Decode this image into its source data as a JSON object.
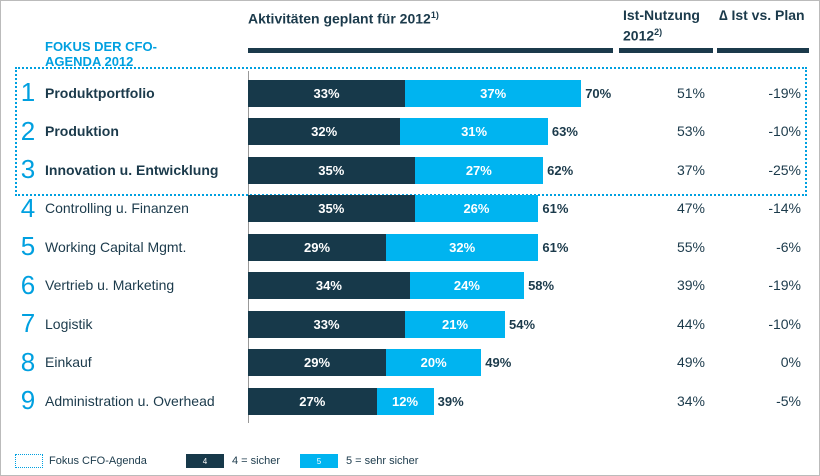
{
  "chart_data": {
    "type": "bar",
    "orientation": "horizontal",
    "stacked": true,
    "title": "Aktivitäten geplant für 2012",
    "title_note": "1)",
    "focus_heading": "FOKUS DER CFO-AGENDA 2012",
    "ranks": [
      1,
      2,
      3,
      4,
      5,
      6,
      7,
      8,
      9
    ],
    "categories": [
      "Produktportfolio",
      "Produktion",
      "Innovation u. Entwicklung",
      "Controlling u. Finanzen",
      "Working Capital Mgmt.",
      "Vertrieb u. Marketing",
      "Logistik",
      "Einkauf",
      "Administration u. Overhead"
    ],
    "focus": [
      true,
      true,
      true,
      false,
      false,
      false,
      false,
      false,
      false
    ],
    "xlim": [
      0,
      100
    ],
    "series": [
      {
        "name": "4 = sicher",
        "key": "4",
        "color": "#17394a",
        "values": [
          33,
          32,
          35,
          35,
          29,
          34,
          33,
          29,
          27
        ],
        "value_labels": [
          "33%",
          "32%",
          "35%",
          "35%",
          "29%",
          "34%",
          "33%",
          "29%",
          "27%"
        ]
      },
      {
        "name": "5 = sehr sicher",
        "key": "5",
        "color": "#00b4f0",
        "values": [
          37,
          31,
          27,
          26,
          32,
          24,
          21,
          20,
          12
        ],
        "value_labels": [
          "37%",
          "31%",
          "27%",
          "26%",
          "32%",
          "24%",
          "21%",
          "20%",
          "12%"
        ]
      }
    ],
    "totals": [
      70,
      63,
      62,
      61,
      61,
      58,
      54,
      49,
      39
    ],
    "total_labels": [
      "70%",
      "63%",
      "62%",
      "61%",
      "61%",
      "58%",
      "54%",
      "49%",
      "39%"
    ],
    "ist": {
      "header": "Ist-Nutzung 2012",
      "note": "2)",
      "labels": [
        "51%",
        "53%",
        "37%",
        "47%",
        "55%",
        "39%",
        "44%",
        "49%",
        "34%"
      ]
    },
    "delta": {
      "header": "∆ Ist vs. Plan",
      "labels": [
        "-19%",
        "-10%",
        "-25%",
        "-14%",
        "-6%",
        "-19%",
        "-10%",
        "0%",
        "-5%"
      ]
    },
    "focus_legend": "Fokus CFO-Agenda"
  }
}
